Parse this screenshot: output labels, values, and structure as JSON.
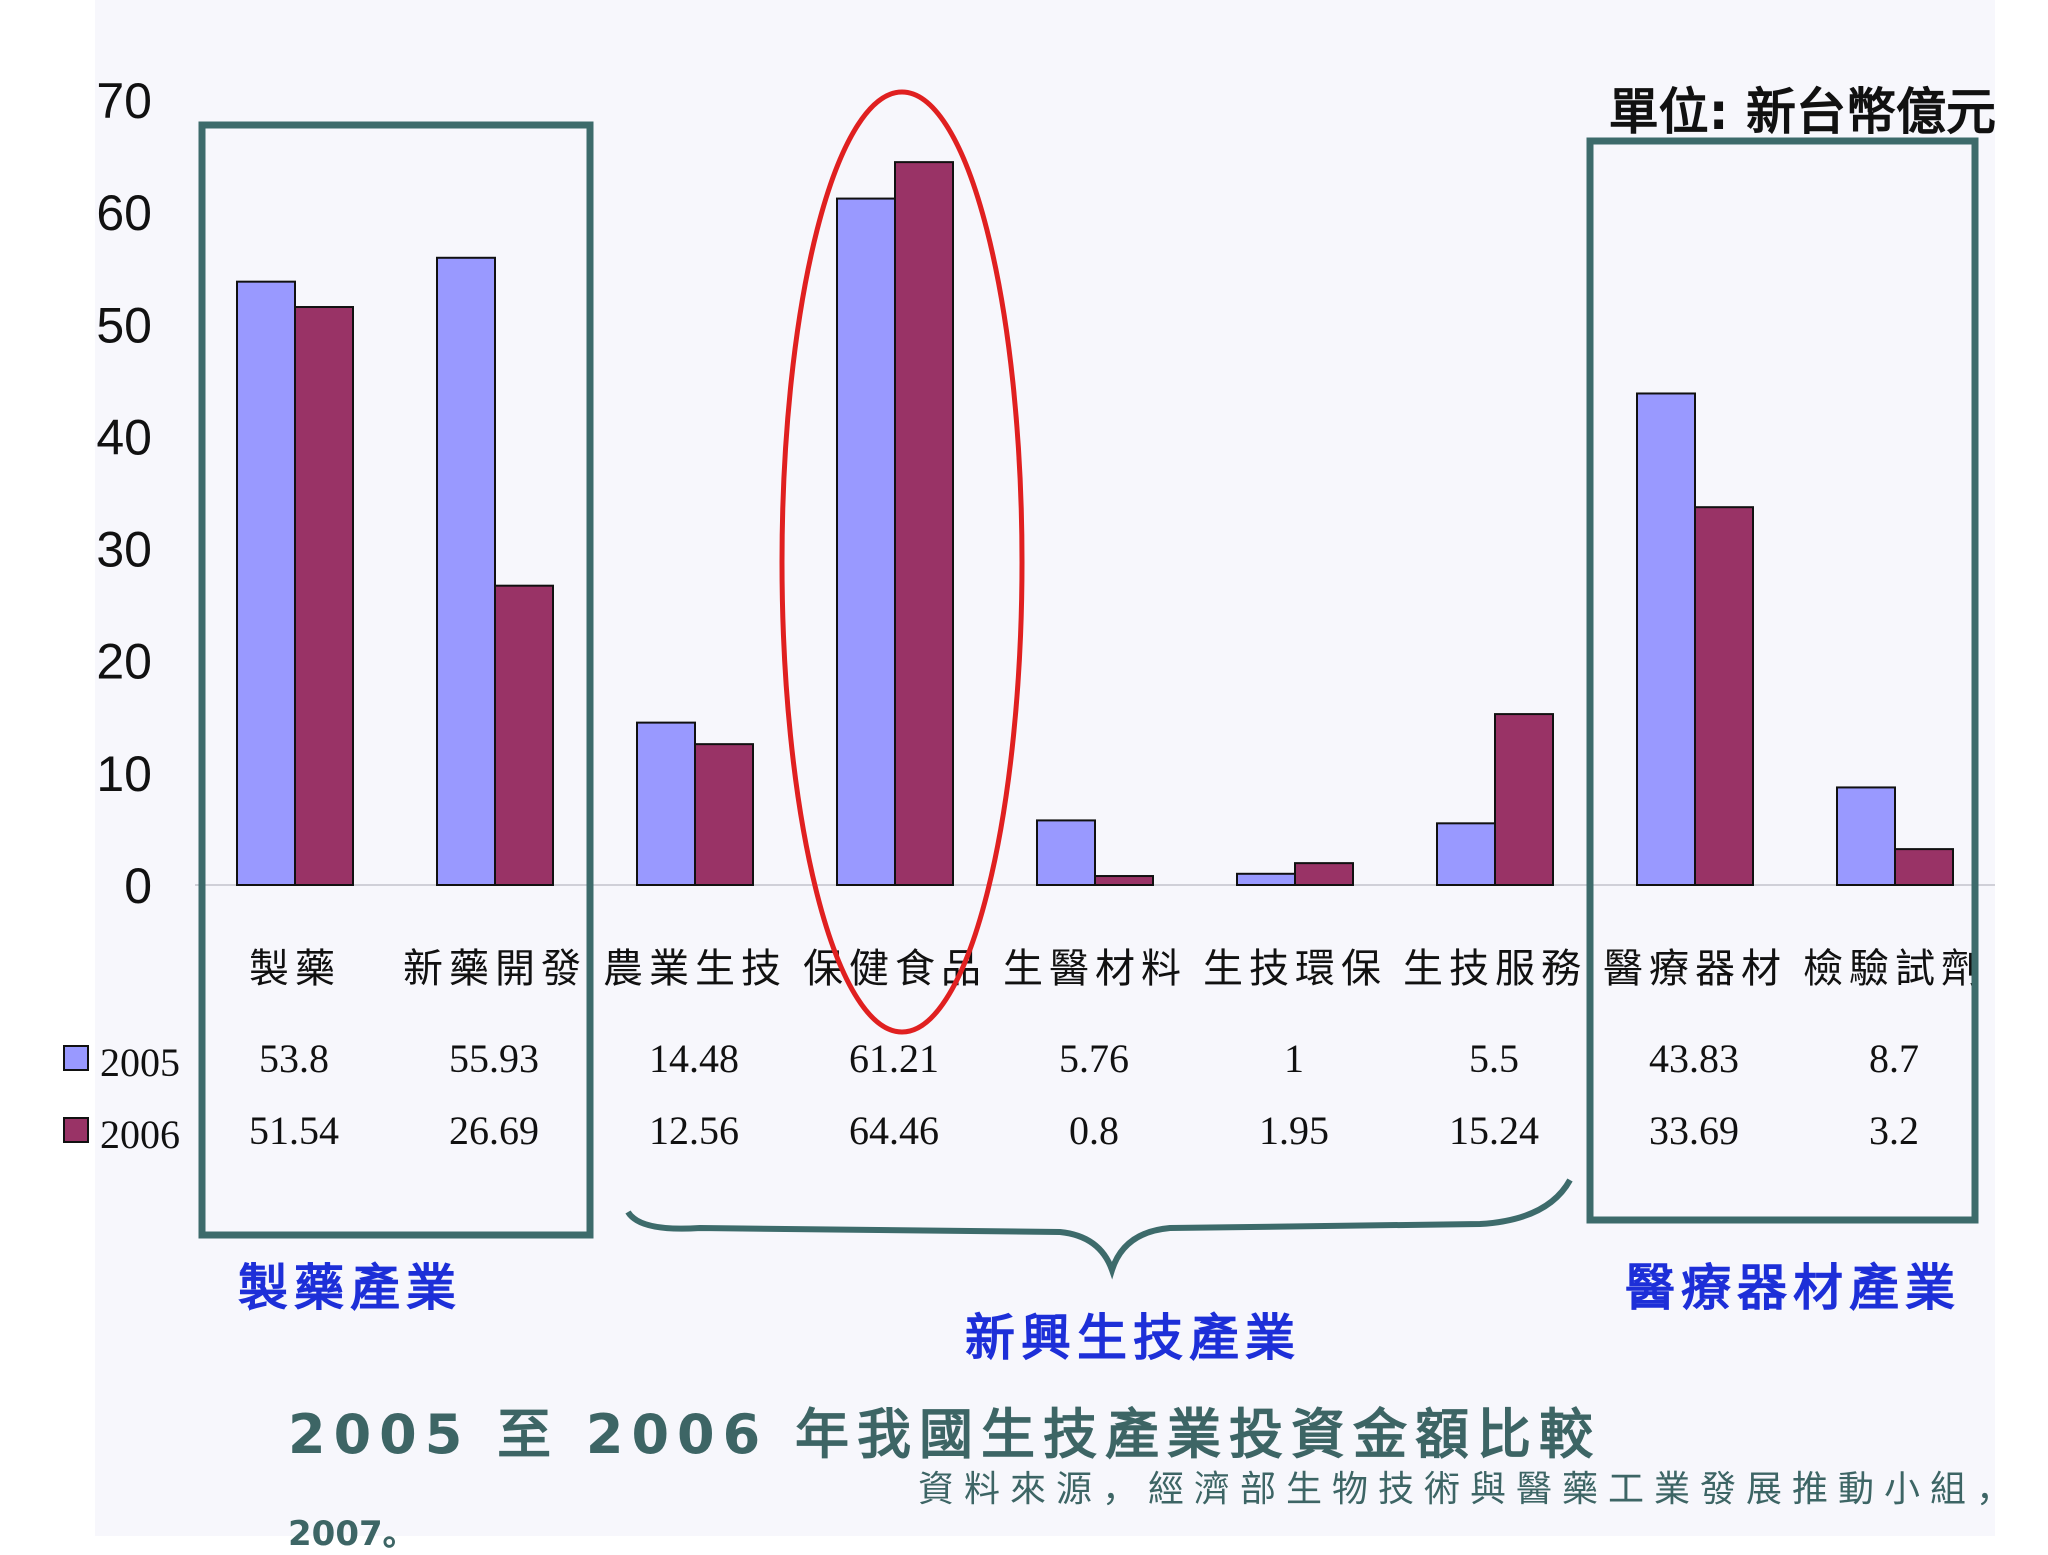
{
  "unit_label": "單位: 新台幣億元",
  "group_labels": {
    "pharma": "製藥產業",
    "emerging": "新興生技產業",
    "devices": "醫療器材產業"
  },
  "caption": "2005 至 2006 年我國生技產業投資金額比較",
  "source": "資料來源，經濟部生物技術與醫藥工業發展推動小組，",
  "source_year": "2007。",
  "colors": {
    "series_2005": "#9999ff",
    "series_2006": "#993366",
    "box": "#3d6b6b",
    "ellipse": "#e02020",
    "brace": "#3d6b6b",
    "group_text": "#1d2fd8"
  },
  "chart_data": {
    "type": "bar",
    "categories": [
      "製藥",
      "新藥開發",
      "農業生技",
      "保健食品",
      "生醫材料",
      "生技環保",
      "生技服務",
      "醫療器材",
      "檢驗試劑"
    ],
    "series": [
      {
        "name": "2005",
        "values": [
          53.8,
          55.93,
          14.48,
          61.21,
          5.76,
          1,
          5.5,
          43.83,
          8.7
        ]
      },
      {
        "name": "2006",
        "values": [
          51.54,
          26.69,
          12.56,
          64.46,
          0.8,
          1.95,
          15.24,
          33.69,
          3.2
        ]
      }
    ],
    "value_labels": [
      [
        "53.8",
        "55.93",
        "14.48",
        "61.21",
        "5.76",
        "1",
        "5.5",
        "43.83",
        "8.7"
      ],
      [
        "51.54",
        "26.69",
        "12.56",
        "64.46",
        "0.8",
        "1.95",
        "15.24",
        "33.69",
        "3.2"
      ]
    ],
    "ylim": [
      0,
      70
    ],
    "yticks": [
      0,
      10,
      20,
      30,
      40,
      50,
      60,
      70
    ],
    "grid": false,
    "legend": "data-table-left",
    "title": "",
    "xlabel": "",
    "ylabel": ""
  }
}
